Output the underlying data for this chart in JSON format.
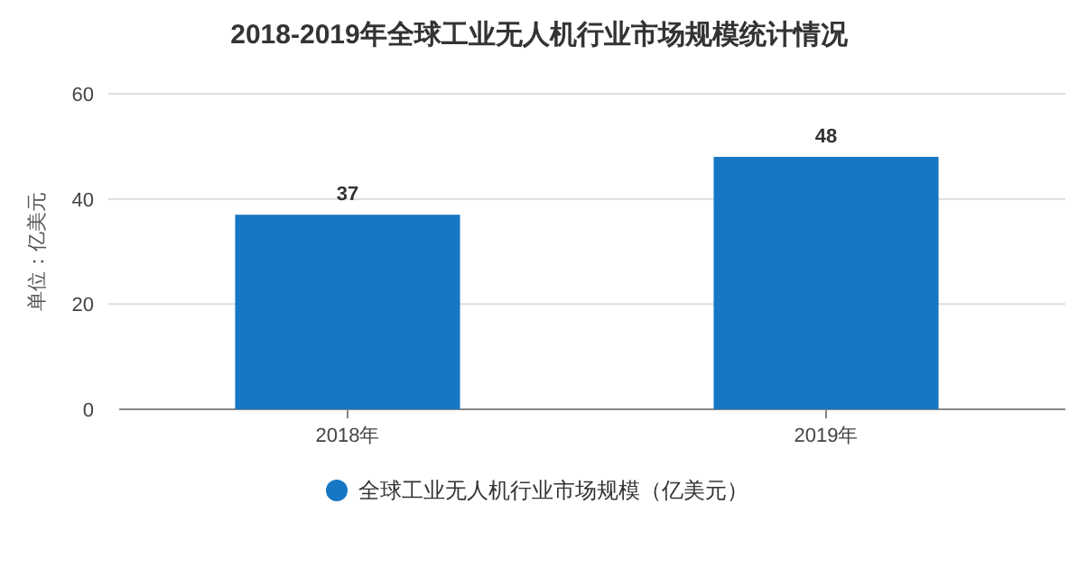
{
  "chart_data": {
    "type": "bar",
    "title": "2018-2019年全球工业无人机行业市场规模统计情况",
    "ylabel": "单位：亿美元",
    "categories": [
      "2018年",
      "2019年"
    ],
    "series": [
      {
        "name": "全球工业无人机行业市场规模（亿美元）",
        "color": "#1677c4",
        "values": [
          37,
          48
        ]
      }
    ],
    "ylim": [
      0,
      60
    ],
    "yticks": [
      0,
      20,
      40,
      60
    ],
    "grid": "y",
    "legend": "bottom",
    "data_labels": true
  }
}
